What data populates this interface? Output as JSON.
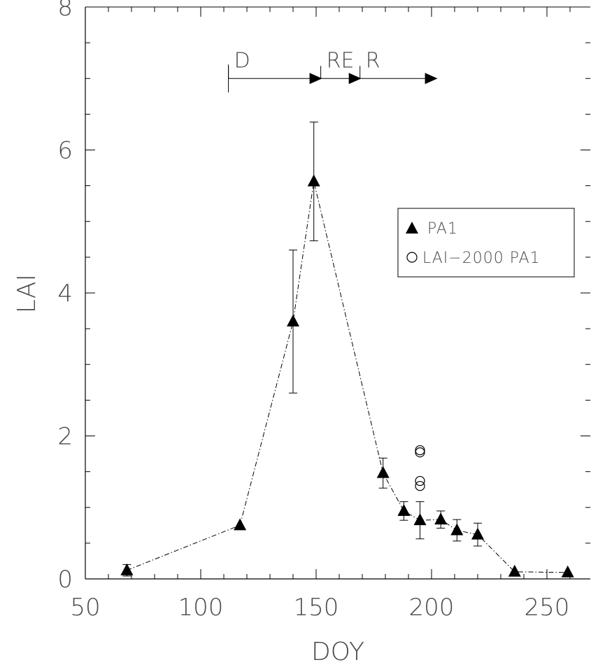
{
  "chart_data": {
    "type": "scatter",
    "xlabel": "DOY",
    "ylabel": "LAI",
    "xlim": [
      50,
      265
    ],
    "ylim": [
      0,
      8
    ],
    "x_ticks": [
      50,
      100,
      150,
      200,
      250
    ],
    "y_ticks": [
      0,
      2,
      4,
      6,
      8
    ],
    "grid": false,
    "legend_position": "center-right",
    "series": [
      {
        "name": "PA1",
        "marker": "filled-triangle",
        "line": "dash-dot",
        "color": "#000000",
        "points": [
          {
            "x": 68,
            "y": 0.12,
            "err": 0.08
          },
          {
            "x": 117,
            "y": 0.75,
            "err": 0
          },
          {
            "x": 140,
            "y": 3.6,
            "err": 1.0
          },
          {
            "x": 149,
            "y": 5.56,
            "err": 0.83
          },
          {
            "x": 179,
            "y": 1.48,
            "err": 0.21
          },
          {
            "x": 188,
            "y": 0.95,
            "err": 0.13
          },
          {
            "x": 195,
            "y": 0.82,
            "err": 0.26
          },
          {
            "x": 204,
            "y": 0.83,
            "err": 0.12
          },
          {
            "x": 211,
            "y": 0.68,
            "err": 0.15
          },
          {
            "x": 220,
            "y": 0.62,
            "err": 0.16
          },
          {
            "x": 236,
            "y": 0.1,
            "err": 0
          },
          {
            "x": 259,
            "y": 0.09,
            "err": 0
          }
        ]
      },
      {
        "name": "LAI−2000 PA1",
        "marker": "open-circle",
        "color": "#000000",
        "points": [
          {
            "x": 195,
            "y": 1.8
          },
          {
            "x": 195,
            "y": 1.77
          },
          {
            "x": 195,
            "y": 1.37
          },
          {
            "x": 195,
            "y": 1.3
          }
        ]
      }
    ],
    "phases": [
      {
        "label": "D",
        "start": 112,
        "end": 152
      },
      {
        "label": "RE",
        "start": 152,
        "end": 169
      },
      {
        "label": "R",
        "start": 169,
        "end": 202
      }
    ],
    "phase_y": 7.0
  }
}
